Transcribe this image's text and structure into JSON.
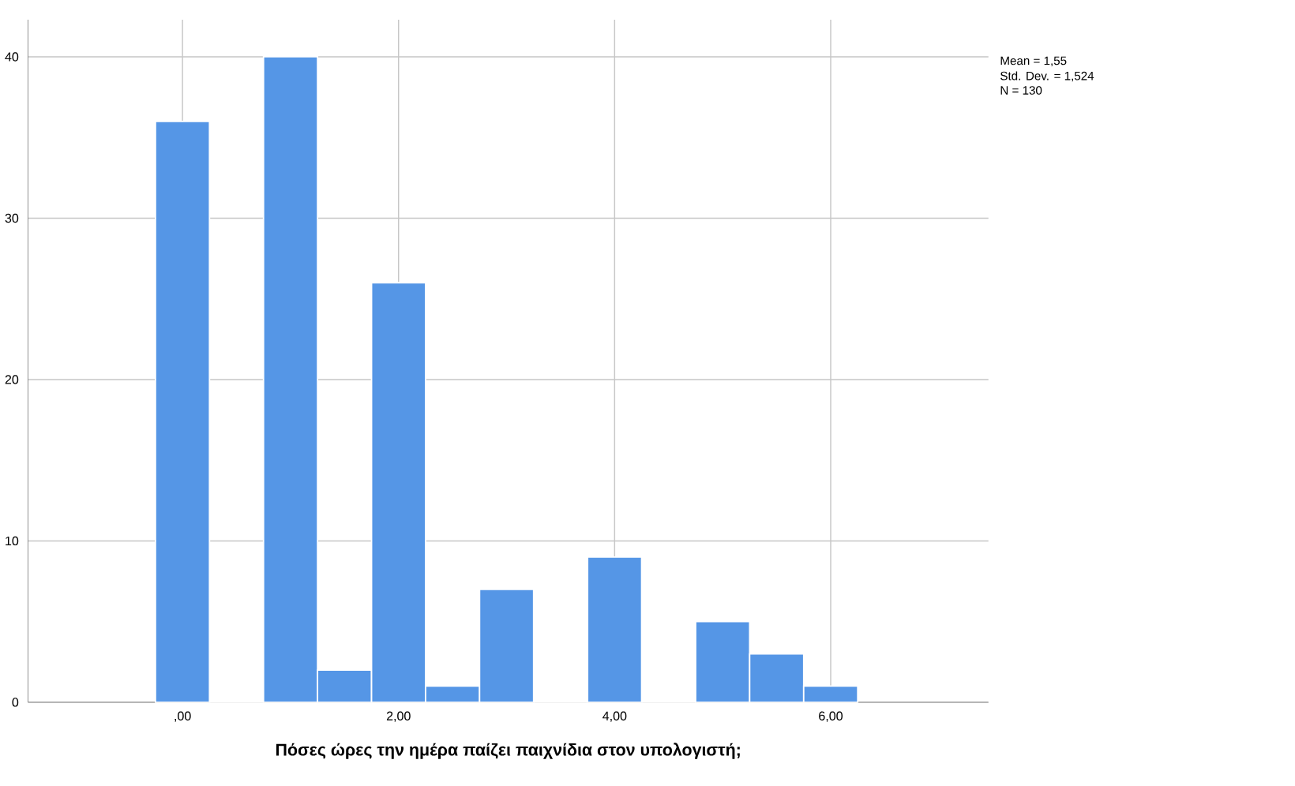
{
  "chart_data": {
    "type": "histogram",
    "xlabel": "Πόσες ώρες την ημέρα παίζει παιχνίδια στον υπολογιστή;",
    "bins": [
      -0.25,
      0.25,
      0.75,
      1.25,
      1.75,
      2.25,
      2.75,
      3.25,
      3.75,
      4.25,
      4.75,
      5.25,
      5.75,
      6.25
    ],
    "values": [
      36,
      0,
      40,
      2,
      26,
      1,
      7,
      0,
      9,
      0,
      5,
      3,
      1
    ],
    "color": "#5596e6",
    "xlim": [
      -1.43,
      7.46
    ],
    "ylim": [
      0,
      42.3
    ],
    "xticks": [
      {
        "value": 0,
        "label": ",00"
      },
      {
        "value": 2,
        "label": "2,00"
      },
      {
        "value": 4,
        "label": "4,00"
      },
      {
        "value": 6,
        "label": "6,00"
      }
    ],
    "yticks": [
      0,
      10,
      20,
      30,
      40
    ],
    "grid": true,
    "annotations": [
      "Mean = 1,55",
      "Std. Dev. = 1,524",
      "N = 130"
    ]
  }
}
